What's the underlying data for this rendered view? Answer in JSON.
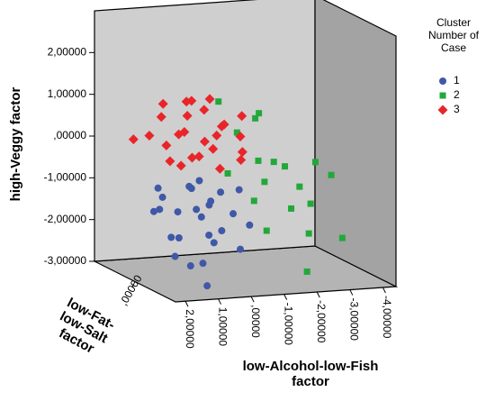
{
  "chart_data": {
    "type": "scatter3d",
    "x_label": "low-Alcohol-low-Fish factor",
    "y_label": "high-Veggy factor",
    "z_label": "low-Fat-low-Salt factor",
    "legend_title": "Cluster Number of Case",
    "legend_position": "right",
    "xlim": [
      2.3,
      -4.4
    ],
    "ylim": [
      -3,
      3
    ],
    "zlim": [
      -1.5,
      1.5
    ],
    "xticks": [
      {
        "value": 2,
        "label": "2,00000"
      },
      {
        "value": 1,
        "label": "1,00000"
      },
      {
        "value": 0,
        "label": ",00000"
      },
      {
        "value": -1,
        "label": "-1,00000"
      },
      {
        "value": -2,
        "label": "-2,00000"
      },
      {
        "value": -3,
        "label": "-3,00000"
      },
      {
        "value": -4,
        "label": "-4,00000"
      }
    ],
    "yticks": [
      {
        "value": 2,
        "label": "2,00000"
      },
      {
        "value": 1,
        "label": "1,00000"
      },
      {
        "value": 0,
        "label": ",00000"
      },
      {
        "value": -1,
        "label": "-1,00000"
      },
      {
        "value": -2,
        "label": "-2,00000"
      },
      {
        "value": -3,
        "label": "-3,00000"
      }
    ],
    "zticks": [
      {
        "value": 0,
        "label": ",00000"
      }
    ],
    "series": [
      {
        "name": "1",
        "color": "#3f58a8",
        "marker": "circle",
        "x": [
          1.6,
          1.3,
          0.9,
          0.5,
          0.1,
          -0.3,
          -0.7,
          1.4,
          1.0,
          0.6,
          0.2,
          -0.2,
          -0.6,
          1.2,
          0.8,
          0.3,
          -0.1,
          -0.5,
          -1.1,
          1.0,
          0.4,
          -0.9,
          0.6,
          0.2,
          1.8,
          0.0
        ],
        "y": [
          -0.8,
          -1.1,
          -0.7,
          -0.9,
          -0.8,
          -1.0,
          -0.9,
          -1.5,
          -1.4,
          -1.3,
          -1.6,
          -1.4,
          -1.5,
          -2.0,
          -2.1,
          -1.9,
          -2.2,
          -2.0,
          -1.8,
          -2.5,
          -2.6,
          -2.4,
          -3.0,
          -2.9,
          -1.2,
          -1.2
        ],
        "z": [
          0,
          0.2,
          -0.3,
          0.1,
          0.3,
          0,
          -0.2,
          0.4,
          0,
          -0.2,
          0.1,
          0.3,
          -0.1,
          0,
          0.2,
          -0.3,
          0,
          0.2,
          -0.1,
          0.1,
          -0.2,
          0,
          -0.6,
          0.5,
          -0.3,
          0
        ]
      },
      {
        "name": "2",
        "color": "#22a83a",
        "marker": "square",
        "x": [
          -0.4,
          -1.3,
          -1.6,
          -0.8,
          -1.2,
          -2.0,
          -2.5,
          -3.1,
          -1.8,
          -2.7,
          -3.5,
          -1.4,
          -2.2,
          -3.2,
          -1.7,
          -2.9,
          -4.0,
          -2.6,
          -0.6
        ],
        "y": [
          1.1,
          0.9,
          0.6,
          0.4,
          -0.2,
          -0.4,
          -0.6,
          -0.4,
          -0.9,
          -1.0,
          -0.7,
          -1.3,
          -1.4,
          -1.5,
          -2.0,
          -2.1,
          -2.3,
          -2.9,
          -0.6
        ],
        "z": [
          0.2,
          -0.2,
          0.3,
          0,
          -0.3,
          0.1,
          0.3,
          -0.1,
          0.2,
          0,
          -0.2,
          0.1,
          -0.3,
          0.2,
          0,
          -0.1,
          0,
          -0.4,
          0.1
        ]
      },
      {
        "name": "3",
        "color": "#e8262a",
        "marker": "diamond",
        "x": [
          1.5,
          1.2,
          0.9,
          0.5,
          0.2,
          -0.3,
          -0.7,
          1.7,
          1.3,
          0.8,
          0.3,
          -0.1,
          -0.5,
          -0.9,
          1.1,
          0.6,
          0.1,
          -0.4,
          -0.8,
          0.9,
          0.4,
          -0.2,
          2.1,
          1.4,
          0.0,
          -1.0
        ],
        "y": [
          0.9,
          1.1,
          1.3,
          1.2,
          1.0,
          1.1,
          0.9,
          0.4,
          0.6,
          0.5,
          0.7,
          0.4,
          0.5,
          0.3,
          0.1,
          0.0,
          0.2,
          -0.1,
          0.0,
          -0.3,
          -0.2,
          -0.4,
          0.3,
          -0.1,
          0.8,
          -0.3
        ],
        "z": [
          0,
          0.3,
          -0.2,
          0.1,
          0,
          0.4,
          -0.3,
          0.2,
          -0.4,
          0,
          0.5,
          -0.1,
          0.2,
          0,
          0.3,
          -0.3,
          0.1,
          0.4,
          -0.2,
          0,
          0.2,
          -0.1,
          0.3,
          -0.2,
          -0.5,
          0.1
        ]
      }
    ]
  }
}
